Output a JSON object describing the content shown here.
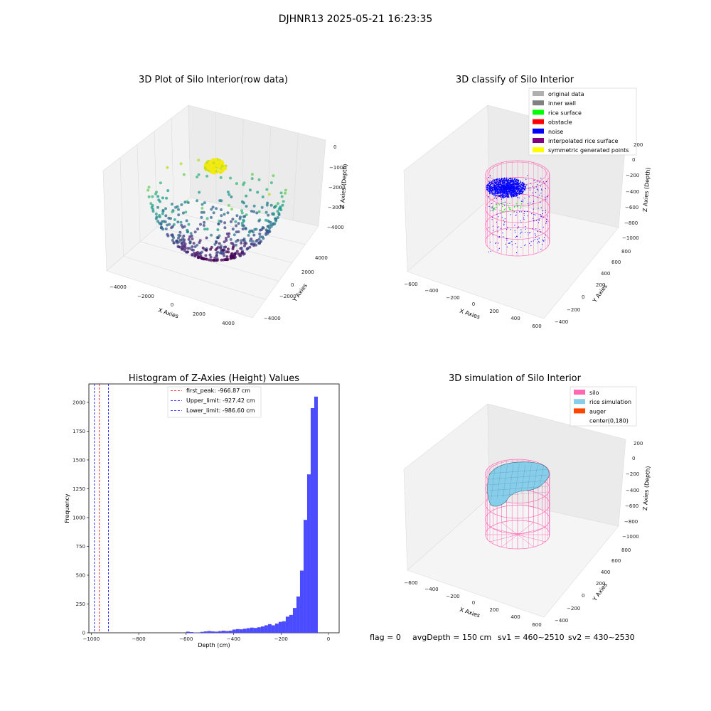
{
  "suptitle": "DJHNR13 2025-05-21 16:23:35",
  "colors": {
    "pane": "#f2f2f2",
    "grid": "#dcdcdc",
    "histogram_bar": "#4b4bff",
    "silo": "#ff69b4",
    "rice_sim": "#87ceeb"
  },
  "chart_data": [
    {
      "type": "scatter",
      "projection": "3d",
      "title": "3D Plot of Silo Interior(row data)",
      "xlabel": "X Axies",
      "ylabel": "Y Axies",
      "zlabel": "Z Axies (Depth)",
      "xticks": [
        "−4000",
        "−2000",
        "0",
        "2000",
        "4000"
      ],
      "yticks": [
        "−4000",
        "−2000",
        "0",
        "2000",
        "4000"
      ],
      "zticks": [
        "0",
        "−1000",
        "−2000",
        "−3000",
        "−4000"
      ],
      "xlim": [
        -5000,
        5000
      ],
      "ylim": [
        -5000,
        5000
      ],
      "zlim": [
        -5000,
        0
      ],
      "colormap": "viridis by depth",
      "description_note": "hemispherical bowl of points; dense yellow cluster near top at center"
    },
    {
      "type": "scatter",
      "projection": "3d",
      "title": "3D classify of Silo Interior",
      "xlabel": "X Axies",
      "ylabel": "Y Axies",
      "zlabel": "Z Axies (Depth)",
      "xticks": [
        "−600",
        "−400",
        "−200",
        "0",
        "200",
        "400",
        "600"
      ],
      "yticks": [
        "−400",
        "−200",
        "0",
        "200",
        "400",
        "600",
        "800"
      ],
      "zticks": [
        "200",
        "0",
        "−200",
        "−400",
        "−600",
        "−800",
        "−1000"
      ],
      "legend": [
        {
          "label": "original data",
          "color": "#b0b0b0"
        },
        {
          "label": "inner wall",
          "color": "#808080"
        },
        {
          "label": "rice surface",
          "color": "#00ff00"
        },
        {
          "label": "obstacle",
          "color": "#ff0000"
        },
        {
          "label": "noise",
          "color": "#0000ff"
        },
        {
          "label": "interpolated rice surface",
          "color": "#800080"
        },
        {
          "label": "symmetric generated points",
          "color": "#ffff00"
        }
      ],
      "legend_loc": "upper right"
    },
    {
      "type": "bar",
      "title": "Histogram of Z-Axies (Height) Values",
      "xlabel": "Depth (cm)",
      "ylabel": "Frequency",
      "xlim": [
        -1010,
        45
      ],
      "ylim": [
        0,
        2160
      ],
      "xticks": [
        -1000,
        -800,
        -600,
        -400,
        -200,
        0
      ],
      "xtick_labels": [
        "−1000",
        "−800",
        "−600",
        "−400",
        "−200",
        "0"
      ],
      "yticks": [
        0,
        250,
        500,
        750,
        1000,
        1250,
        1500,
        1750,
        2000
      ],
      "bin_width": 15,
      "bins": [
        {
          "x": -600,
          "v": 10
        },
        {
          "x": -585,
          "v": 6
        },
        {
          "x": -570,
          "v": 3
        },
        {
          "x": -555,
          "v": 2
        },
        {
          "x": -540,
          "v": 8
        },
        {
          "x": -525,
          "v": 12
        },
        {
          "x": -510,
          "v": 15
        },
        {
          "x": -495,
          "v": 12
        },
        {
          "x": -480,
          "v": 10
        },
        {
          "x": -465,
          "v": 14
        },
        {
          "x": -450,
          "v": 18
        },
        {
          "x": -435,
          "v": 15
        },
        {
          "x": -420,
          "v": 18
        },
        {
          "x": -405,
          "v": 28
        },
        {
          "x": -390,
          "v": 32
        },
        {
          "x": -375,
          "v": 30
        },
        {
          "x": -360,
          "v": 35
        },
        {
          "x": -345,
          "v": 40
        },
        {
          "x": -330,
          "v": 45
        },
        {
          "x": -315,
          "v": 42
        },
        {
          "x": -300,
          "v": 48
        },
        {
          "x": -285,
          "v": 55
        },
        {
          "x": -270,
          "v": 65
        },
        {
          "x": -255,
          "v": 75
        },
        {
          "x": -240,
          "v": 65
        },
        {
          "x": -225,
          "v": 80
        },
        {
          "x": -210,
          "v": 95
        },
        {
          "x": -195,
          "v": 100
        },
        {
          "x": -180,
          "v": 140
        },
        {
          "x": -165,
          "v": 155
        },
        {
          "x": -150,
          "v": 215
        },
        {
          "x": -135,
          "v": 315
        },
        {
          "x": -120,
          "v": 540
        },
        {
          "x": -105,
          "v": 980
        },
        {
          "x": -90,
          "v": 1375
        },
        {
          "x": -75,
          "v": 1950
        },
        {
          "x": -60,
          "v": 2050
        }
      ],
      "vlines": [
        {
          "x": -966.87,
          "color": "#ff0000"
        },
        {
          "x": -927.42,
          "color": "#0000ff"
        },
        {
          "x": -986.6,
          "color": "#0000ff"
        }
      ],
      "legend": [
        {
          "label": "first_peak: -966.87 cm",
          "color": "#ff0000"
        },
        {
          "label": "Upper_limit: -927.42 cm",
          "color": "#0000ff"
        },
        {
          "label": "Lower_limit: -986.60 cm",
          "color": "#0000ff"
        }
      ],
      "legend_loc": "upper center"
    },
    {
      "type": "surface",
      "projection": "3d",
      "title": "3D simulation of Silo Interior",
      "xlabel": "X Axies",
      "ylabel": "Y Axies",
      "zlabel": "Z Axies (Depth)",
      "xticks": [
        "−600",
        "−400",
        "−200",
        "0",
        "200",
        "400",
        "600"
      ],
      "yticks": [
        "−400",
        "−200",
        "0",
        "200",
        "400",
        "600",
        "800"
      ],
      "zticks": [
        "200",
        "0",
        "−200",
        "−400",
        "−600",
        "−800",
        "−1000"
      ],
      "legend": [
        {
          "label": "silo",
          "color": "#ff69b4"
        },
        {
          "label": "rice simulation",
          "color": "#87ceeb"
        },
        {
          "label": "auger",
          "color": "#ff4500"
        },
        {
          "label": "center(0,180)",
          "color": ""
        }
      ],
      "legend_loc": "upper right"
    }
  ],
  "status": {
    "flag": "flag = 0",
    "avg_depth": "avgDepth = 150 cm",
    "sv1": "sv1 = 460~2510",
    "sv2": "sv2 = 430~2530"
  }
}
